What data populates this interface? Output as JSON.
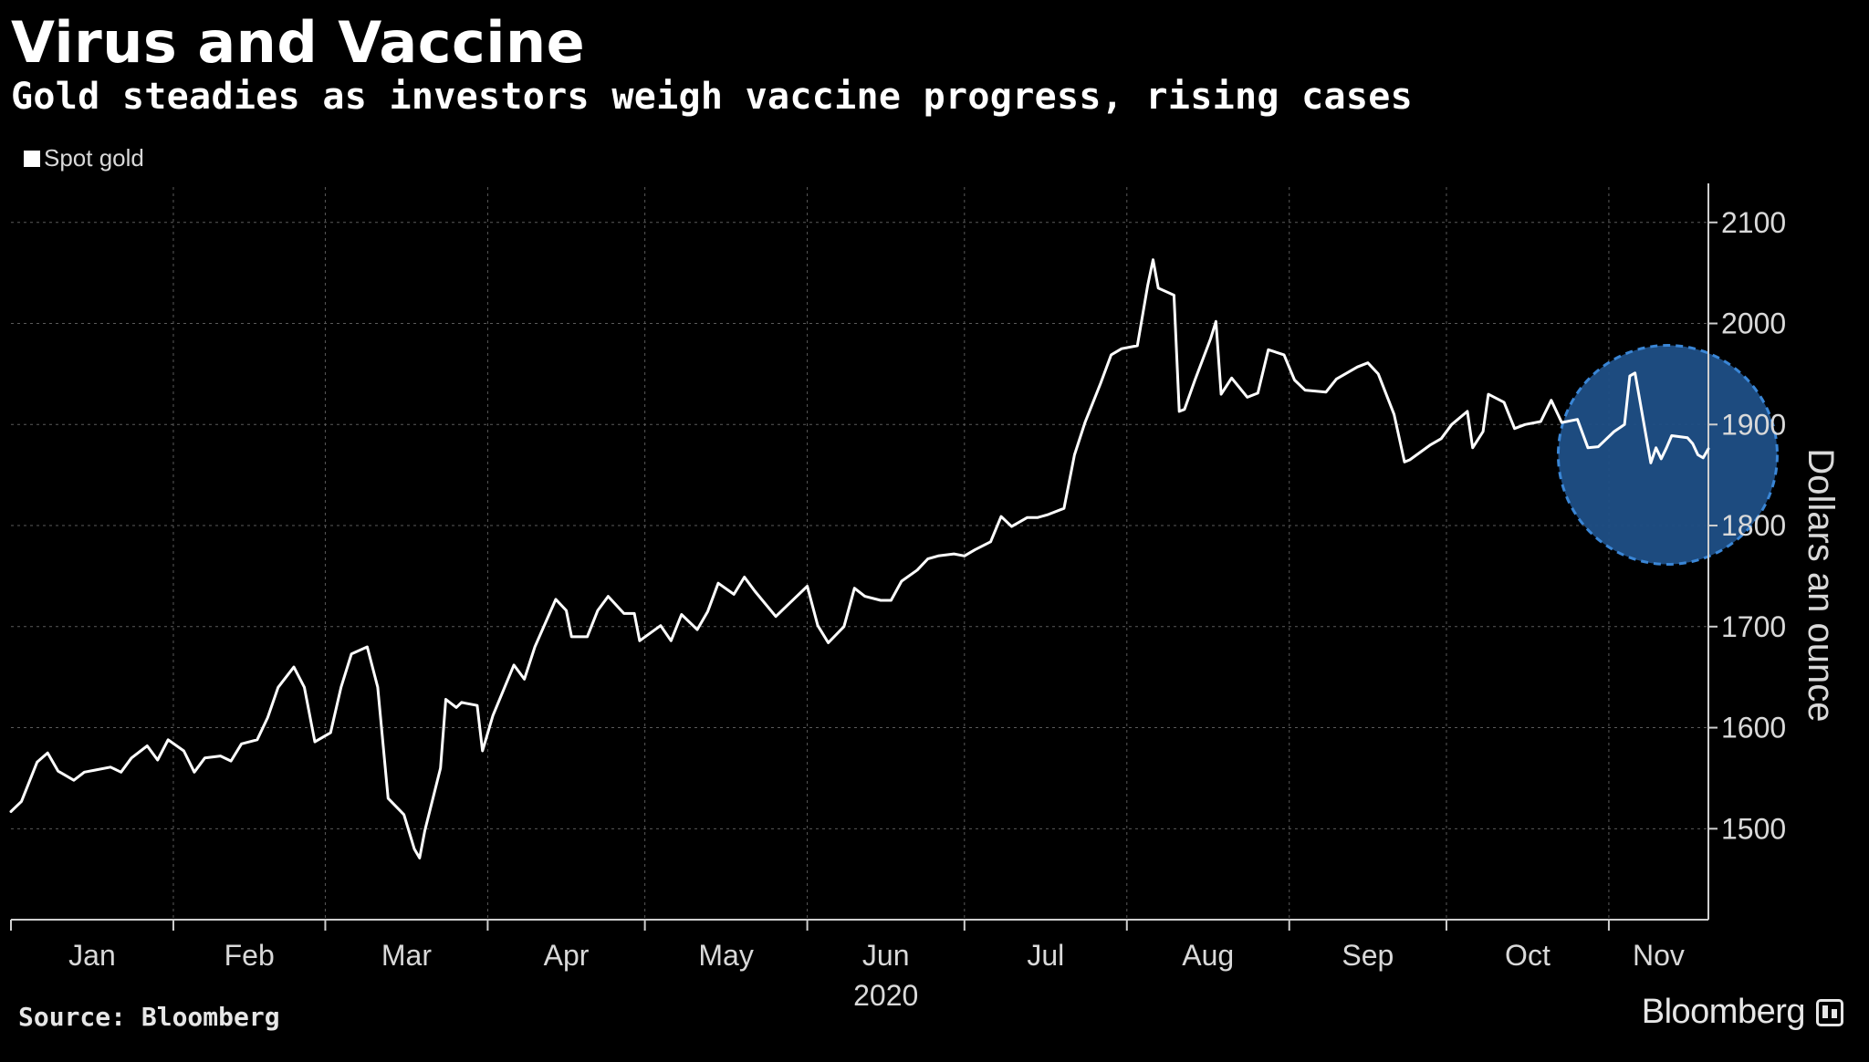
{
  "header": {
    "title": "Virus and Vaccine",
    "subtitle": "Gold steadies as investors weigh vaccine progress, rising cases"
  },
  "footer": {
    "source": "Source: Bloomberg",
    "brand": "Bloomberg"
  },
  "colors": {
    "background": "#000000",
    "line": "#ffffff",
    "grid": "#5a5a5a",
    "highlight": "#1f4f86",
    "highlight_border": "#3a86d6"
  },
  "chart_data": {
    "type": "line",
    "legend": [
      "Spot gold"
    ],
    "legend_position": "top-left",
    "ylabel": "Dollars an ounce",
    "y_axis_side": "right",
    "ylim": [
      1410,
      2135
    ],
    "yticks": [
      1500,
      1600,
      1700,
      1800,
      1900,
      2000,
      2100
    ],
    "xlim": [
      "2020-01-01",
      "2020-11-20"
    ],
    "x_month_labels": [
      "Jan",
      "Feb",
      "Mar",
      "Apr",
      "May",
      "Jun",
      "Jul",
      "Aug",
      "Sep",
      "Oct",
      "Nov"
    ],
    "x_year_label": "2020",
    "grid": true,
    "highlight_region": {
      "shape": "circle",
      "start": "2020-11-01",
      "end": "2020-11-20",
      "center_value": 1870
    },
    "series": [
      {
        "name": "Spot gold",
        "points": [
          [
            "2020-01-01",
            1517
          ],
          [
            "2020-01-03",
            1527
          ],
          [
            "2020-01-06",
            1566
          ],
          [
            "2020-01-08",
            1575
          ],
          [
            "2020-01-10",
            1557
          ],
          [
            "2020-01-13",
            1548
          ],
          [
            "2020-01-15",
            1556
          ],
          [
            "2020-01-17",
            1558
          ],
          [
            "2020-01-20",
            1561
          ],
          [
            "2020-01-22",
            1556
          ],
          [
            "2020-01-24",
            1570
          ],
          [
            "2020-01-27",
            1582
          ],
          [
            "2020-01-29",
            1568
          ],
          [
            "2020-01-31",
            1588
          ],
          [
            "2020-02-03",
            1577
          ],
          [
            "2020-02-05",
            1556
          ],
          [
            "2020-02-07",
            1570
          ],
          [
            "2020-02-10",
            1572
          ],
          [
            "2020-02-12",
            1567
          ],
          [
            "2020-02-14",
            1584
          ],
          [
            "2020-02-17",
            1588
          ],
          [
            "2020-02-19",
            1610
          ],
          [
            "2020-02-21",
            1640
          ],
          [
            "2020-02-24",
            1660
          ],
          [
            "2020-02-26",
            1640
          ],
          [
            "2020-02-28",
            1586
          ],
          [
            "2020-03-02",
            1595
          ],
          [
            "2020-03-04",
            1640
          ],
          [
            "2020-03-06",
            1673
          ],
          [
            "2020-03-09",
            1680
          ],
          [
            "2020-03-11",
            1640
          ],
          [
            "2020-03-13",
            1530
          ],
          [
            "2020-03-16",
            1514
          ],
          [
            "2020-03-18",
            1480
          ],
          [
            "2020-03-19",
            1471
          ],
          [
            "2020-03-20",
            1498
          ],
          [
            "2020-03-23",
            1560
          ],
          [
            "2020-03-24",
            1628
          ],
          [
            "2020-03-26",
            1620
          ],
          [
            "2020-03-27",
            1625
          ],
          [
            "2020-03-30",
            1622
          ],
          [
            "2020-03-31",
            1577
          ],
          [
            "2020-04-02",
            1612
          ],
          [
            "2020-04-06",
            1662
          ],
          [
            "2020-04-08",
            1648
          ],
          [
            "2020-04-10",
            1680
          ],
          [
            "2020-04-14",
            1727
          ],
          [
            "2020-04-16",
            1716
          ],
          [
            "2020-04-17",
            1690
          ],
          [
            "2020-04-20",
            1690
          ],
          [
            "2020-04-22",
            1716
          ],
          [
            "2020-04-24",
            1730
          ],
          [
            "2020-04-27",
            1713
          ],
          [
            "2020-04-29",
            1713
          ],
          [
            "2020-04-30",
            1686
          ],
          [
            "2020-05-04",
            1701
          ],
          [
            "2020-05-06",
            1686
          ],
          [
            "2020-05-08",
            1712
          ],
          [
            "2020-05-11",
            1697
          ],
          [
            "2020-05-13",
            1715
          ],
          [
            "2020-05-15",
            1743
          ],
          [
            "2020-05-18",
            1732
          ],
          [
            "2020-05-20",
            1749
          ],
          [
            "2020-05-22",
            1735
          ],
          [
            "2020-05-26",
            1710
          ],
          [
            "2020-05-28",
            1720
          ],
          [
            "2020-06-01",
            1740
          ],
          [
            "2020-06-03",
            1701
          ],
          [
            "2020-06-05",
            1684
          ],
          [
            "2020-06-08",
            1700
          ],
          [
            "2020-06-10",
            1738
          ],
          [
            "2020-06-12",
            1730
          ],
          [
            "2020-06-15",
            1726
          ],
          [
            "2020-06-17",
            1726
          ],
          [
            "2020-06-19",
            1745
          ],
          [
            "2020-06-22",
            1756
          ],
          [
            "2020-06-24",
            1767
          ],
          [
            "2020-06-26",
            1770
          ],
          [
            "2020-06-29",
            1772
          ],
          [
            "2020-07-01",
            1770
          ],
          [
            "2020-07-03",
            1776
          ],
          [
            "2020-07-06",
            1784
          ],
          [
            "2020-07-08",
            1809
          ],
          [
            "2020-07-10",
            1799
          ],
          [
            "2020-07-13",
            1808
          ],
          [
            "2020-07-15",
            1808
          ],
          [
            "2020-07-17",
            1811
          ],
          [
            "2020-07-20",
            1817
          ],
          [
            "2020-07-22",
            1870
          ],
          [
            "2020-07-24",
            1902
          ],
          [
            "2020-07-27",
            1941
          ],
          [
            "2020-07-29",
            1969
          ],
          [
            "2020-07-31",
            1975
          ],
          [
            "2020-08-03",
            1978
          ],
          [
            "2020-08-05",
            2038
          ],
          [
            "2020-08-06",
            2063
          ],
          [
            "2020-08-07",
            2035
          ],
          [
            "2020-08-10",
            2028
          ],
          [
            "2020-08-11",
            1913
          ],
          [
            "2020-08-12",
            1915
          ],
          [
            "2020-08-14",
            1944
          ],
          [
            "2020-08-17",
            1985
          ],
          [
            "2020-08-18",
            2002
          ],
          [
            "2020-08-19",
            1930
          ],
          [
            "2020-08-21",
            1946
          ],
          [
            "2020-08-24",
            1927
          ],
          [
            "2020-08-26",
            1931
          ],
          [
            "2020-08-28",
            1974
          ],
          [
            "2020-08-31",
            1969
          ],
          [
            "2020-09-02",
            1944
          ],
          [
            "2020-09-04",
            1934
          ],
          [
            "2020-09-08",
            1932
          ],
          [
            "2020-09-10",
            1945
          ],
          [
            "2020-09-14",
            1957
          ],
          [
            "2020-09-16",
            1961
          ],
          [
            "2020-09-18",
            1950
          ],
          [
            "2020-09-21",
            1910
          ],
          [
            "2020-09-23",
            1863
          ],
          [
            "2020-09-24",
            1865
          ],
          [
            "2020-09-28",
            1880
          ],
          [
            "2020-09-30",
            1886
          ],
          [
            "2020-10-02",
            1900
          ],
          [
            "2020-10-05",
            1913
          ],
          [
            "2020-10-06",
            1877
          ],
          [
            "2020-10-08",
            1893
          ],
          [
            "2020-10-09",
            1930
          ],
          [
            "2020-10-12",
            1922
          ],
          [
            "2020-10-14",
            1896
          ],
          [
            "2020-10-16",
            1900
          ],
          [
            "2020-10-19",
            1903
          ],
          [
            "2020-10-21",
            1924
          ],
          [
            "2020-10-23",
            1902
          ],
          [
            "2020-10-26",
            1905
          ],
          [
            "2020-10-28",
            1877
          ],
          [
            "2020-10-30",
            1878
          ],
          [
            "2020-11-02",
            1893
          ],
          [
            "2020-11-04",
            1900
          ],
          [
            "2020-11-05",
            1948
          ],
          [
            "2020-11-06",
            1951
          ],
          [
            "2020-11-09",
            1862
          ],
          [
            "2020-11-10",
            1877
          ],
          [
            "2020-11-11",
            1866
          ],
          [
            "2020-11-12",
            1877
          ],
          [
            "2020-11-13",
            1889
          ],
          [
            "2020-11-16",
            1887
          ],
          [
            "2020-11-17",
            1881
          ],
          [
            "2020-11-18",
            1870
          ],
          [
            "2020-11-19",
            1867
          ],
          [
            "2020-11-20",
            1876
          ]
        ]
      }
    ]
  }
}
